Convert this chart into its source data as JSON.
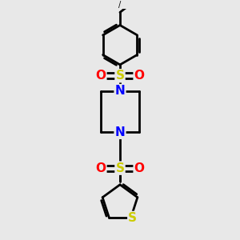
{
  "background_color": "#e8e8e8",
  "bond_color": "#000000",
  "bond_width": 2.0,
  "N_color": "#0000ff",
  "S_color": "#cccc00",
  "O_color": "#ff0000",
  "figure_size": [
    3.0,
    3.0
  ],
  "dpi": 100,
  "xlim": [
    -1.2,
    1.2
  ],
  "ylim": [
    -2.5,
    2.5
  ]
}
